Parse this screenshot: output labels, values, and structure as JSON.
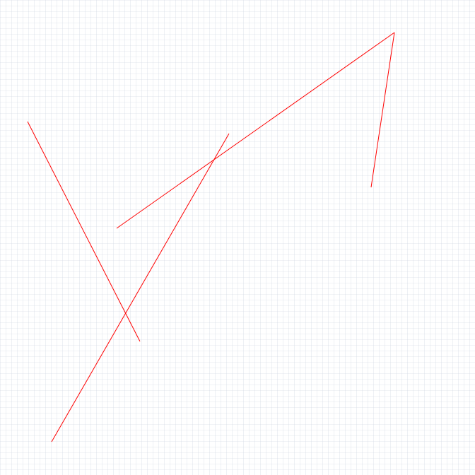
{
  "canvas": {
    "background": "#ffffff",
    "grid_color": "#c8d0de",
    "line_color": "#ff0000"
  },
  "segments_count": 4
}
